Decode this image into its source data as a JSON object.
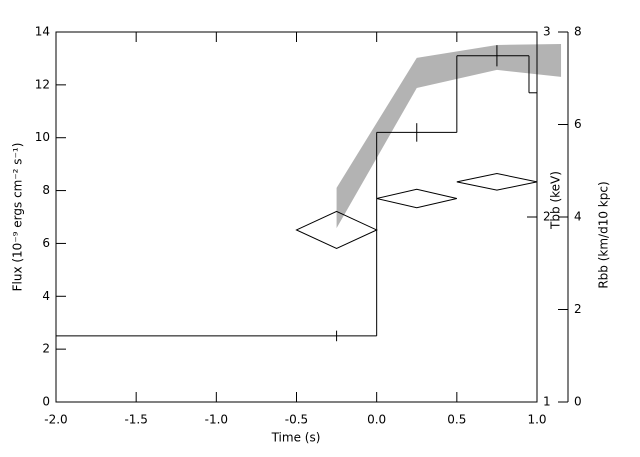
{
  "chart_data": {
    "type": "step",
    "xlabel": "Time (s)",
    "ylabel": "Flux (10⁻⁹ ergs cm⁻² s⁻¹)",
    "y2label": "Tbb (keV)",
    "y3label": "Rbb (km/d10 kpc)",
    "xlim": [
      -2.0,
      1.0
    ],
    "xticks": [
      {
        "value": -2.0,
        "label": "-2.0"
      },
      {
        "value": -1.5,
        "label": "-1.5"
      },
      {
        "value": -1.0,
        "label": "-1.0"
      },
      {
        "value": -0.5,
        "label": "-0.5"
      },
      {
        "value": 0.0,
        "label": "0.0"
      },
      {
        "value": 0.5,
        "label": "0.5"
      },
      {
        "value": 1.0,
        "label": "1.0"
      }
    ],
    "ylim": [
      0,
      14
    ],
    "yticks": [
      0,
      2,
      4,
      6,
      8,
      10,
      12,
      14
    ],
    "y2lim": [
      1,
      3
    ],
    "y2ticks": [
      1,
      2,
      3
    ],
    "y3lim": [
      0,
      8
    ],
    "y3ticks": [
      0,
      2,
      4,
      6,
      8
    ],
    "flux": {
      "color": "#000000",
      "bins": [
        -2.0,
        0.0,
        0.5,
        0.95,
        1.0
      ],
      "values": [
        2.5,
        10.2,
        13.1,
        11.7
      ]
    },
    "flux_errors": {
      "color": "#000000",
      "x": [
        -0.25,
        0.25,
        0.75
      ],
      "values": [
        2.5,
        10.2,
        13.1
      ],
      "errors": [
        0.2,
        0.35,
        0.4
      ]
    },
    "temperature": {
      "axis": "y2",
      "color": "#000000",
      "x": [
        -0.25,
        0.25,
        0.75
      ],
      "xerr": [
        0.25,
        0.25,
        0.25
      ],
      "values": [
        1.93,
        2.1,
        2.19
      ],
      "errors": [
        0.1,
        0.05,
        0.045
      ]
    },
    "radius": {
      "axis": "y3",
      "color": "#b3b3b3",
      "x": [
        -0.25,
        0.25,
        0.75,
        1.15
      ],
      "lower": [
        3.76,
        6.79,
        7.18,
        7.03
      ],
      "upper": [
        4.63,
        7.44,
        7.72,
        7.74
      ]
    }
  }
}
